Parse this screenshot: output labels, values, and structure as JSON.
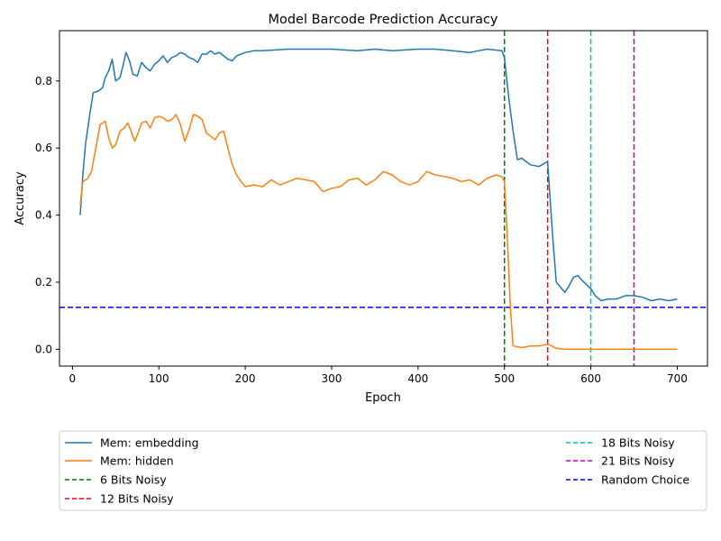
{
  "chart_data": {
    "type": "line",
    "title": "Model Barcode Prediction Accuracy",
    "xlabel": "Epoch",
    "ylabel": "Accuracy",
    "xlim": [
      -15,
      735
    ],
    "ylim": [
      -0.05,
      0.95
    ],
    "xticks": [
      0,
      100,
      200,
      300,
      400,
      500,
      600,
      700
    ],
    "yticks": [
      0.0,
      0.2,
      0.4,
      0.6,
      0.8
    ],
    "ytick_labels": [
      "0.0",
      "0.2",
      "0.4",
      "0.6",
      "0.8"
    ],
    "grid": false,
    "legend_position": "bottom",
    "series": [
      {
        "name": "Mem: embedding",
        "color": "#1f77b4",
        "style": "solid",
        "points": [
          [
            9,
            0.4
          ],
          [
            12,
            0.52
          ],
          [
            15,
            0.61
          ],
          [
            20,
            0.7
          ],
          [
            24,
            0.765
          ],
          [
            30,
            0.77
          ],
          [
            35,
            0.78
          ],
          [
            38,
            0.81
          ],
          [
            42,
            0.83
          ],
          [
            46,
            0.865
          ],
          [
            50,
            0.8
          ],
          [
            55,
            0.81
          ],
          [
            58,
            0.84
          ],
          [
            62,
            0.885
          ],
          [
            66,
            0.86
          ],
          [
            70,
            0.82
          ],
          [
            75,
            0.815
          ],
          [
            80,
            0.855
          ],
          [
            85,
            0.84
          ],
          [
            90,
            0.83
          ],
          [
            95,
            0.85
          ],
          [
            100,
            0.86
          ],
          [
            105,
            0.875
          ],
          [
            110,
            0.855
          ],
          [
            115,
            0.87
          ],
          [
            120,
            0.875
          ],
          [
            125,
            0.885
          ],
          [
            130,
            0.88
          ],
          [
            135,
            0.87
          ],
          [
            140,
            0.865
          ],
          [
            145,
            0.855
          ],
          [
            150,
            0.88
          ],
          [
            155,
            0.88
          ],
          [
            160,
            0.89
          ],
          [
            165,
            0.88
          ],
          [
            170,
            0.885
          ],
          [
            175,
            0.875
          ],
          [
            180,
            0.865
          ],
          [
            185,
            0.86
          ],
          [
            190,
            0.875
          ],
          [
            200,
            0.885
          ],
          [
            210,
            0.89
          ],
          [
            220,
            0.89
          ],
          [
            250,
            0.895
          ],
          [
            300,
            0.895
          ],
          [
            330,
            0.89
          ],
          [
            350,
            0.895
          ],
          [
            370,
            0.89
          ],
          [
            400,
            0.895
          ],
          [
            420,
            0.895
          ],
          [
            440,
            0.89
          ],
          [
            460,
            0.885
          ],
          [
            470,
            0.89
          ],
          [
            480,
            0.895
          ],
          [
            497,
            0.89
          ],
          [
            500,
            0.87
          ],
          [
            505,
            0.75
          ],
          [
            510,
            0.65
          ],
          [
            515,
            0.565
          ],
          [
            520,
            0.57
          ],
          [
            525,
            0.56
          ],
          [
            530,
            0.55
          ],
          [
            540,
            0.545
          ],
          [
            550,
            0.56
          ],
          [
            552,
            0.48
          ],
          [
            556,
            0.33
          ],
          [
            560,
            0.2
          ],
          [
            565,
            0.185
          ],
          [
            570,
            0.17
          ],
          [
            575,
            0.19
          ],
          [
            580,
            0.215
          ],
          [
            585,
            0.22
          ],
          [
            590,
            0.205
          ],
          [
            600,
            0.18
          ],
          [
            605,
            0.16
          ],
          [
            612,
            0.145
          ],
          [
            620,
            0.15
          ],
          [
            630,
            0.15
          ],
          [
            640,
            0.16
          ],
          [
            650,
            0.16
          ],
          [
            660,
            0.155
          ],
          [
            670,
            0.145
          ],
          [
            680,
            0.15
          ],
          [
            690,
            0.145
          ],
          [
            700,
            0.15
          ]
        ]
      },
      {
        "name": "Mem: hidden",
        "color": "#ff7f0e",
        "style": "solid",
        "points": [
          [
            9,
            0.43
          ],
          [
            12,
            0.5
          ],
          [
            18,
            0.51
          ],
          [
            22,
            0.53
          ],
          [
            27,
            0.6
          ],
          [
            32,
            0.67
          ],
          [
            38,
            0.68
          ],
          [
            42,
            0.63
          ],
          [
            46,
            0.6
          ],
          [
            50,
            0.61
          ],
          [
            55,
            0.65
          ],
          [
            60,
            0.66
          ],
          [
            64,
            0.675
          ],
          [
            68,
            0.65
          ],
          [
            72,
            0.62
          ],
          [
            76,
            0.645
          ],
          [
            80,
            0.675
          ],
          [
            85,
            0.68
          ],
          [
            90,
            0.66
          ],
          [
            95,
            0.69
          ],
          [
            100,
            0.695
          ],
          [
            105,
            0.69
          ],
          [
            110,
            0.68
          ],
          [
            115,
            0.685
          ],
          [
            120,
            0.7
          ],
          [
            125,
            0.67
          ],
          [
            130,
            0.62
          ],
          [
            135,
            0.655
          ],
          [
            140,
            0.7
          ],
          [
            145,
            0.695
          ],
          [
            150,
            0.685
          ],
          [
            155,
            0.645
          ],
          [
            160,
            0.635
          ],
          [
            165,
            0.625
          ],
          [
            170,
            0.645
          ],
          [
            175,
            0.65
          ],
          [
            180,
            0.6
          ],
          [
            185,
            0.55
          ],
          [
            190,
            0.52
          ],
          [
            195,
            0.5
          ],
          [
            200,
            0.485
          ],
          [
            210,
            0.49
          ],
          [
            220,
            0.485
          ],
          [
            230,
            0.505
          ],
          [
            240,
            0.49
          ],
          [
            250,
            0.5
          ],
          [
            260,
            0.51
          ],
          [
            270,
            0.505
          ],
          [
            280,
            0.5
          ],
          [
            290,
            0.47
          ],
          [
            300,
            0.48
          ],
          [
            310,
            0.485
          ],
          [
            320,
            0.505
          ],
          [
            330,
            0.51
          ],
          [
            340,
            0.49
          ],
          [
            350,
            0.505
          ],
          [
            360,
            0.53
          ],
          [
            370,
            0.52
          ],
          [
            380,
            0.5
          ],
          [
            390,
            0.49
          ],
          [
            400,
            0.5
          ],
          [
            410,
            0.53
          ],
          [
            420,
            0.52
          ],
          [
            430,
            0.515
          ],
          [
            440,
            0.51
          ],
          [
            450,
            0.5
          ],
          [
            460,
            0.505
          ],
          [
            470,
            0.49
          ],
          [
            480,
            0.51
          ],
          [
            490,
            0.52
          ],
          [
            497,
            0.515
          ],
          [
            500,
            0.5
          ],
          [
            503,
            0.35
          ],
          [
            507,
            0.12
          ],
          [
            510,
            0.01
          ],
          [
            520,
            0.005
          ],
          [
            530,
            0.01
          ],
          [
            540,
            0.01
          ],
          [
            550,
            0.015
          ],
          [
            555,
            0.01
          ],
          [
            560,
            0.003
          ],
          [
            570,
            0.0
          ],
          [
            600,
            0.0
          ],
          [
            650,
            0.0
          ],
          [
            700,
            0.0
          ]
        ]
      }
    ],
    "vlines": [
      {
        "name": "6 Bits Noisy",
        "x": 500,
        "color": "#008000"
      },
      {
        "name": "12 Bits Noisy",
        "x": 550,
        "color": "#ff0000"
      },
      {
        "name": "18 Bits Noisy",
        "x": 600,
        "color": "#00bfbf"
      },
      {
        "name": "21 Bits Noisy",
        "x": 650,
        "color": "#bf00bf"
      }
    ],
    "hlines": [
      {
        "name": "Random Choice",
        "y": 0.125,
        "color": "#0000ff"
      }
    ]
  }
}
